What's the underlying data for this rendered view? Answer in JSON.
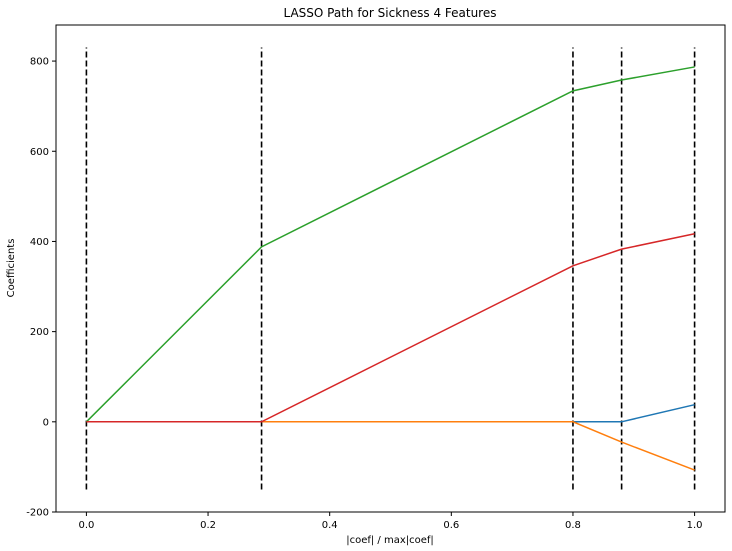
{
  "chart_data": {
    "type": "line",
    "title": "LASSO Path for Sickness 4 Features",
    "xlabel": "|coef| / max|coef|",
    "ylabel": "Coefficients",
    "xlim": [
      -0.05,
      1.05
    ],
    "ylim": [
      -200,
      880
    ],
    "xticks": [
      "0.0",
      "0.2",
      "0.4",
      "0.6",
      "0.8",
      "1.0"
    ],
    "yticks": [
      "-200",
      "0",
      "200",
      "400",
      "600",
      "800"
    ],
    "x": [
      0.0,
      0.288,
      0.8,
      0.88,
      1.0
    ],
    "series": [
      {
        "color": "#1f77b4",
        "values": [
          0,
          0,
          0,
          0,
          38
        ]
      },
      {
        "color": "#ff7f0e",
        "values": [
          0,
          0,
          0,
          -45,
          -107
        ]
      },
      {
        "color": "#2ca02c",
        "values": [
          0,
          388,
          734,
          758,
          787
        ]
      },
      {
        "color": "#d62728",
        "values": [
          0,
          0,
          346,
          383,
          417
        ]
      }
    ],
    "vlines": [
      0.0,
      0.288,
      0.8,
      0.88,
      1.0
    ],
    "vline_range": [
      -150,
      830
    ],
    "vline_style": "dashed black",
    "grid": false,
    "legend": "none"
  }
}
